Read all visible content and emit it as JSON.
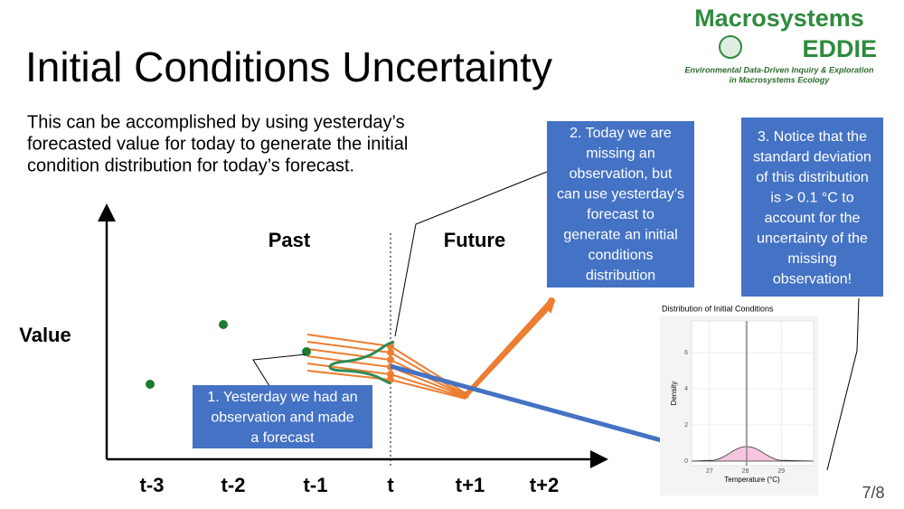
{
  "logo": {
    "title": "Macrosystems",
    "subtitle": "EDDIE",
    "tagline": [
      "Environmental Data-Driven Inquiry & Exploration",
      "in Macrosystems Ecology"
    ]
  },
  "header": {
    "title": "Initial Conditions Uncertainty"
  },
  "body": {
    "text": [
      "This can be accomplished by using yesterday’s",
      "forecasted value for today to generate the initial",
      "condition distribution for today’s forecast."
    ]
  },
  "diagram": {
    "y_label": "Value",
    "x_labels": [
      "t-3",
      "t-2",
      "t-1",
      "t",
      "t+1",
      "t+2"
    ],
    "regions": [
      "Past",
      "Future"
    ]
  },
  "callouts": [
    [
      "1. Yesterday we had an",
      "observation and made",
      "a forecast"
    ],
    [
      "2. Today we are",
      "missing an",
      "observation, but",
      "can use yesterday’s",
      "forecast to",
      "generate an initial",
      "conditions",
      "distribution"
    ],
    [
      "3. Notice that the",
      "standard deviation",
      "of this distribution",
      "is > 0.1 °C to",
      "account for the",
      "uncertainty of the",
      "missing",
      "observation!"
    ]
  ],
  "inset": {
    "title": "Distribution of Initial Conditions",
    "x_label": "Temperature (°C)",
    "y_label": "Density",
    "xlim": [
      26.5,
      29.9
    ],
    "xticks": [
      27,
      28,
      29
    ],
    "ylim": [
      -0.25,
      7.75
    ],
    "yticks": [
      0,
      2,
      4,
      6
    ]
  },
  "page": "7/8"
}
